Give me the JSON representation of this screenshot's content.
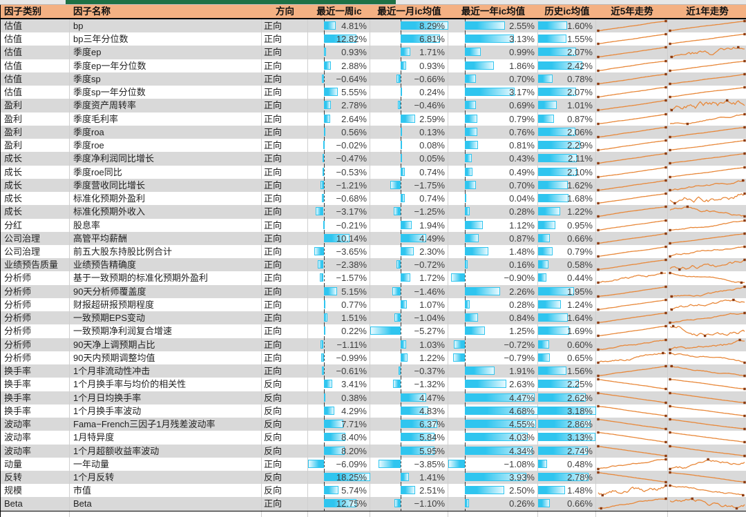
{
  "columns": [
    {
      "label": "因子类别"
    },
    {
      "label": "因子名称"
    },
    {
      "label": "方向"
    },
    {
      "label": "最近一周ic"
    },
    {
      "label": "最近一月ic均值"
    },
    {
      "label": "最近一年ic均值"
    },
    {
      "label": "历史ic均值"
    },
    {
      "label": "近5年走势"
    },
    {
      "label": "近1年走势"
    }
  ],
  "rows": [
    {
      "category": "估值",
      "name": "bp",
      "direction": "正向",
      "week_ic": "4.81%",
      "month_ic": "8.29%",
      "year_ic": "2.55%",
      "hist_ic": "1.60%",
      "trend_5y": "up",
      "trend_1y": "up"
    },
    {
      "category": "估值",
      "name": "bp三年分位数",
      "direction": "正向",
      "week_ic": "12.82%",
      "month_ic": "6.81%",
      "year_ic": "3.13%",
      "hist_ic": "1.55%",
      "trend_5y": "up",
      "trend_1y": "up"
    },
    {
      "category": "估值",
      "name": "季度ep",
      "direction": "正向",
      "week_ic": "0.93%",
      "month_ic": "1.71%",
      "year_ic": "0.99%",
      "hist_ic": "2.07%",
      "trend_5y": "up",
      "trend_1y": "wavy"
    },
    {
      "category": "估值",
      "name": "季度ep一年分位数",
      "direction": "正向",
      "week_ic": "2.88%",
      "month_ic": "0.93%",
      "year_ic": "1.86%",
      "hist_ic": "2.42%",
      "trend_5y": "up",
      "trend_1y": "up"
    },
    {
      "category": "估值",
      "name": "季度sp",
      "direction": "正向",
      "week_ic": "-0.64%",
      "month_ic": "-0.66%",
      "year_ic": "0.70%",
      "hist_ic": "0.78%",
      "trend_5y": "up",
      "trend_1y": "up"
    },
    {
      "category": "估值",
      "name": "季度sp一年分位数",
      "direction": "正向",
      "week_ic": "5.55%",
      "month_ic": "0.24%",
      "year_ic": "3.17%",
      "hist_ic": "2.07%",
      "trend_5y": "up",
      "trend_1y": "up"
    },
    {
      "category": "盈利",
      "name": "季度资产周转率",
      "direction": "正向",
      "week_ic": "2.78%",
      "month_ic": "-0.46%",
      "year_ic": "0.69%",
      "hist_ic": "1.01%",
      "trend_5y": "up",
      "trend_1y": "wavy"
    },
    {
      "category": "盈利",
      "name": "季度毛利率",
      "direction": "正向",
      "week_ic": "2.64%",
      "month_ic": "2.59%",
      "year_ic": "0.79%",
      "hist_ic": "0.87%",
      "trend_5y": "up",
      "trend_1y": "wavy-up"
    },
    {
      "category": "盈利",
      "name": "季度roa",
      "direction": "正向",
      "week_ic": "0.56%",
      "month_ic": "0.13%",
      "year_ic": "0.76%",
      "hist_ic": "2.06%",
      "trend_5y": "up",
      "trend_1y": "up"
    },
    {
      "category": "盈利",
      "name": "季度roe",
      "direction": "正向",
      "week_ic": "-0.02%",
      "month_ic": "0.08%",
      "year_ic": "0.81%",
      "hist_ic": "2.29%",
      "trend_5y": "up",
      "trend_1y": "up"
    },
    {
      "category": "成长",
      "name": "季度净利润同比增长",
      "direction": "正向",
      "week_ic": "-0.47%",
      "month_ic": "0.05%",
      "year_ic": "0.43%",
      "hist_ic": "2.11%",
      "trend_5y": "up",
      "trend_1y": "up"
    },
    {
      "category": "成长",
      "name": "季度roe同比",
      "direction": "正向",
      "week_ic": "-0.53%",
      "month_ic": "0.74%",
      "year_ic": "0.49%",
      "hist_ic": "2.10%",
      "trend_5y": "up",
      "trend_1y": "up"
    },
    {
      "category": "成长",
      "name": "季度营收同比增长",
      "direction": "正向",
      "week_ic": "-1.21%",
      "month_ic": "-1.75%",
      "year_ic": "0.70%",
      "hist_ic": "1.62%",
      "trend_5y": "up",
      "trend_1y": "wavy-up"
    },
    {
      "category": "成长",
      "name": "标准化预期外盈利",
      "direction": "正向",
      "week_ic": "-0.68%",
      "month_ic": "0.74%",
      "year_ic": "0.04%",
      "hist_ic": "1.68%",
      "trend_5y": "up",
      "trend_1y": "wavy"
    },
    {
      "category": "成长",
      "name": "标准化预期外收入",
      "direction": "正向",
      "week_ic": "-3.17%",
      "month_ic": "-1.25%",
      "year_ic": "0.28%",
      "hist_ic": "1.22%",
      "trend_5y": "up",
      "trend_1y": "wavy"
    },
    {
      "category": "分红",
      "name": "股息率",
      "direction": "正向",
      "week_ic": "-0.21%",
      "month_ic": "1.94%",
      "year_ic": "1.12%",
      "hist_ic": "0.95%",
      "trend_5y": "up",
      "trend_1y": "wavy-up"
    },
    {
      "category": "公司治理",
      "name": "高管平均薪酬",
      "direction": "正向",
      "week_ic": "10.14%",
      "month_ic": "4.49%",
      "year_ic": "0.87%",
      "hist_ic": "0.66%",
      "trend_5y": "up",
      "trend_1y": "up"
    },
    {
      "category": "公司治理",
      "name": "前五大股东持股比例合计",
      "direction": "正向",
      "week_ic": "-3.65%",
      "month_ic": "2.30%",
      "year_ic": "1.48%",
      "hist_ic": "0.79%",
      "trend_5y": "up",
      "trend_1y": "wavy-up"
    },
    {
      "category": "业绩预告质量",
      "name": "业绩预告精确度",
      "direction": "正向",
      "week_ic": "-2.38%",
      "month_ic": "-0.72%",
      "year_ic": "0.16%",
      "hist_ic": "0.58%",
      "trend_5y": "up",
      "trend_1y": "wavy"
    },
    {
      "category": "分析师",
      "name": "基于一致预期的标准化预期外盈利",
      "direction": "正向",
      "week_ic": "-1.57%",
      "month_ic": "1.72%",
      "year_ic": "-0.90%",
      "hist_ic": "0.44%",
      "trend_5y": "wavy-up",
      "trend_1y": "wavy-down"
    },
    {
      "category": "分析师",
      "name": "90天分析师覆盖度",
      "direction": "正向",
      "week_ic": "5.15%",
      "month_ic": "-1.46%",
      "year_ic": "2.26%",
      "hist_ic": "1.95%",
      "trend_5y": "up",
      "trend_1y": "wavy-up"
    },
    {
      "category": "分析师",
      "name": "财报超研报预期程度",
      "direction": "正向",
      "week_ic": "0.77%",
      "month_ic": "1.07%",
      "year_ic": "0.28%",
      "hist_ic": "1.24%",
      "trend_5y": "up",
      "trend_1y": "wavy"
    },
    {
      "category": "分析师",
      "name": "一致预期EPS变动",
      "direction": "正向",
      "week_ic": "1.51%",
      "month_ic": "-1.04%",
      "year_ic": "0.84%",
      "hist_ic": "1.64%",
      "trend_5y": "up",
      "trend_1y": "wavy-up"
    },
    {
      "category": "分析师",
      "name": "一致预期净利润复合增速",
      "direction": "正向",
      "week_ic": "0.22%",
      "month_ic": "-5.27%",
      "year_ic": "1.25%",
      "hist_ic": "1.69%",
      "trend_5y": "up",
      "trend_1y": "wavy"
    },
    {
      "category": "分析师",
      "name": "90天净上调预期占比",
      "direction": "正向",
      "week_ic": "-1.11%",
      "month_ic": "1.03%",
      "year_ic": "-0.72%",
      "hist_ic": "0.60%",
      "trend_5y": "wavy-up",
      "trend_1y": "wavy"
    },
    {
      "category": "分析师",
      "name": "90天内预期调整均值",
      "direction": "正向",
      "week_ic": "-0.99%",
      "month_ic": "1.22%",
      "year_ic": "-0.79%",
      "hist_ic": "0.65%",
      "trend_5y": "wavy-up",
      "trend_1y": "wavy-down"
    },
    {
      "category": "换手率",
      "name": "1个月非流动性冲击",
      "direction": "正向",
      "week_ic": "-0.61%",
      "month_ic": "-0.37%",
      "year_ic": "1.91%",
      "hist_ic": "1.56%",
      "trend_5y": "up",
      "trend_1y": "wavy-down"
    },
    {
      "category": "换手率",
      "name": "1个月换手率与均价的相关性",
      "direction": "反向",
      "week_ic": "3.41%",
      "month_ic": "-1.32%",
      "year_ic": "2.63%",
      "hist_ic": "2.25%",
      "trend_5y": "down",
      "trend_1y": "down"
    },
    {
      "category": "换手率",
      "name": "1个月日均换手率",
      "direction": "反向",
      "week_ic": "0.38%",
      "month_ic": "4.47%",
      "year_ic": "4.47%",
      "hist_ic": "2.62%",
      "trend_5y": "down",
      "trend_1y": "down"
    },
    {
      "category": "换手率",
      "name": "1个月换手率波动",
      "direction": "反向",
      "week_ic": "4.29%",
      "month_ic": "4.83%",
      "year_ic": "4.68%",
      "hist_ic": "3.18%",
      "trend_5y": "down",
      "trend_1y": "down"
    },
    {
      "category": "波动率",
      "name": "Fama-French三因子1月残差波动率",
      "direction": "反向",
      "week_ic": "7.71%",
      "month_ic": "6.37%",
      "year_ic": "4.55%",
      "hist_ic": "2.86%",
      "trend_5y": "down",
      "trend_1y": "down"
    },
    {
      "category": "波动率",
      "name": "1月特异度",
      "direction": "反向",
      "week_ic": "8.40%",
      "month_ic": "5.84%",
      "year_ic": "4.03%",
      "hist_ic": "3.13%",
      "trend_5y": "down",
      "trend_1y": "down"
    },
    {
      "category": "波动率",
      "name": "1个月超额收益率波动",
      "direction": "反向",
      "week_ic": "8.20%",
      "month_ic": "5.95%",
      "year_ic": "4.34%",
      "hist_ic": "2.74%",
      "trend_5y": "down",
      "trend_1y": "down"
    },
    {
      "category": "动量",
      "name": "一年动量",
      "direction": "正向",
      "week_ic": "-6.09%",
      "month_ic": "-3.85%",
      "year_ic": "-1.08%",
      "hist_ic": "0.48%",
      "trend_5y": "wavy-up",
      "trend_1y": "wavy"
    },
    {
      "category": "反转",
      "name": "1个月反转",
      "direction": "反向",
      "week_ic": "18.25%",
      "month_ic": "1.41%",
      "year_ic": "3.93%",
      "hist_ic": "2.78%",
      "trend_5y": "down",
      "trend_1y": "down"
    },
    {
      "category": "规模",
      "name": "市值",
      "direction": "反向",
      "week_ic": "5.74%",
      "month_ic": "2.51%",
      "year_ic": "2.50%",
      "hist_ic": "1.48%",
      "trend_5y": "wavy",
      "trend_1y": "wavy-down"
    },
    {
      "category": "Beta",
      "name": "Beta",
      "direction": "正向",
      "week_ic": "12.75%",
      "month_ic": "-1.10%",
      "year_ic": "0.26%",
      "hist_ic": "0.66%",
      "trend_5y": "wavy-up",
      "trend_1y": "wavy"
    }
  ],
  "colors": {
    "header_bg": "#F4B183",
    "alt_row": "#D9D9D9",
    "bar": "#2FC5EF",
    "bar_light": "#E8FAFF",
    "spark_line": "#E8883A",
    "spark_marker": "#8B3A10",
    "strip_green": "#1E7145"
  }
}
